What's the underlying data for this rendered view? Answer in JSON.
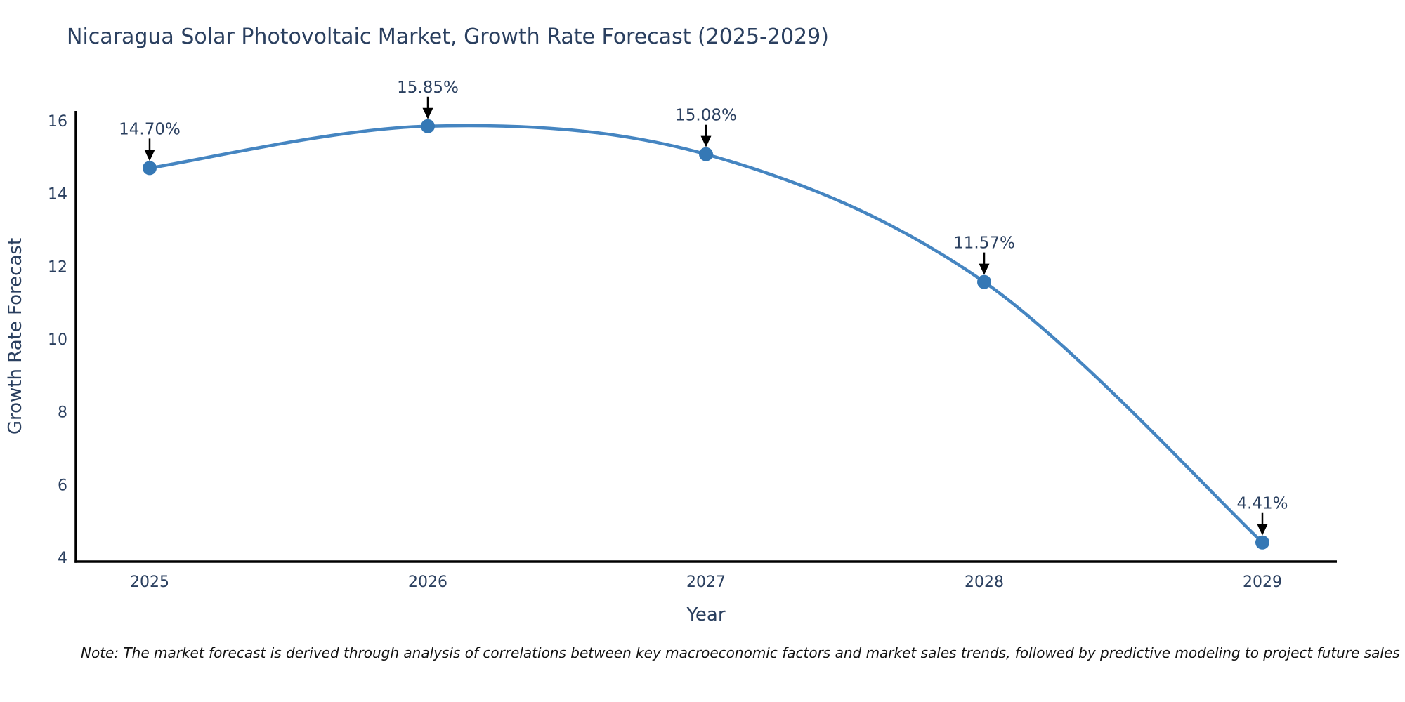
{
  "chart_data": {
    "type": "line",
    "title": "Nicaragua Solar Photovoltaic Market, Growth Rate Forecast (2025-2029)",
    "xlabel": "Year",
    "ylabel": "Growth Rate Forecast",
    "x": [
      2025,
      2026,
      2027,
      2028,
      2029
    ],
    "values": [
      14.7,
      15.85,
      15.08,
      11.57,
      4.41
    ],
    "point_labels": [
      "14.70%",
      "15.85%",
      "15.08%",
      "11.57%",
      "4.41%"
    ],
    "y_ticks": [
      4,
      6,
      8,
      10,
      12,
      14,
      16
    ],
    "ylim": [
      4,
      16.4
    ],
    "line_shape": "spline",
    "grid": false,
    "legend": "none",
    "colors": {
      "line": "#4585c1",
      "marker": "#3578b5",
      "axis": "#000000",
      "text": "#2a3f5f",
      "annotation_text": "#2a3f5f",
      "annotation_arrow": "#000000",
      "note_text": "#111111",
      "background": "#ffffff"
    },
    "note": "Note: The market forecast is derived through analysis of correlations between key macroeconomic factors and market sales trends, followed by predictive modeling to project future sales"
  }
}
